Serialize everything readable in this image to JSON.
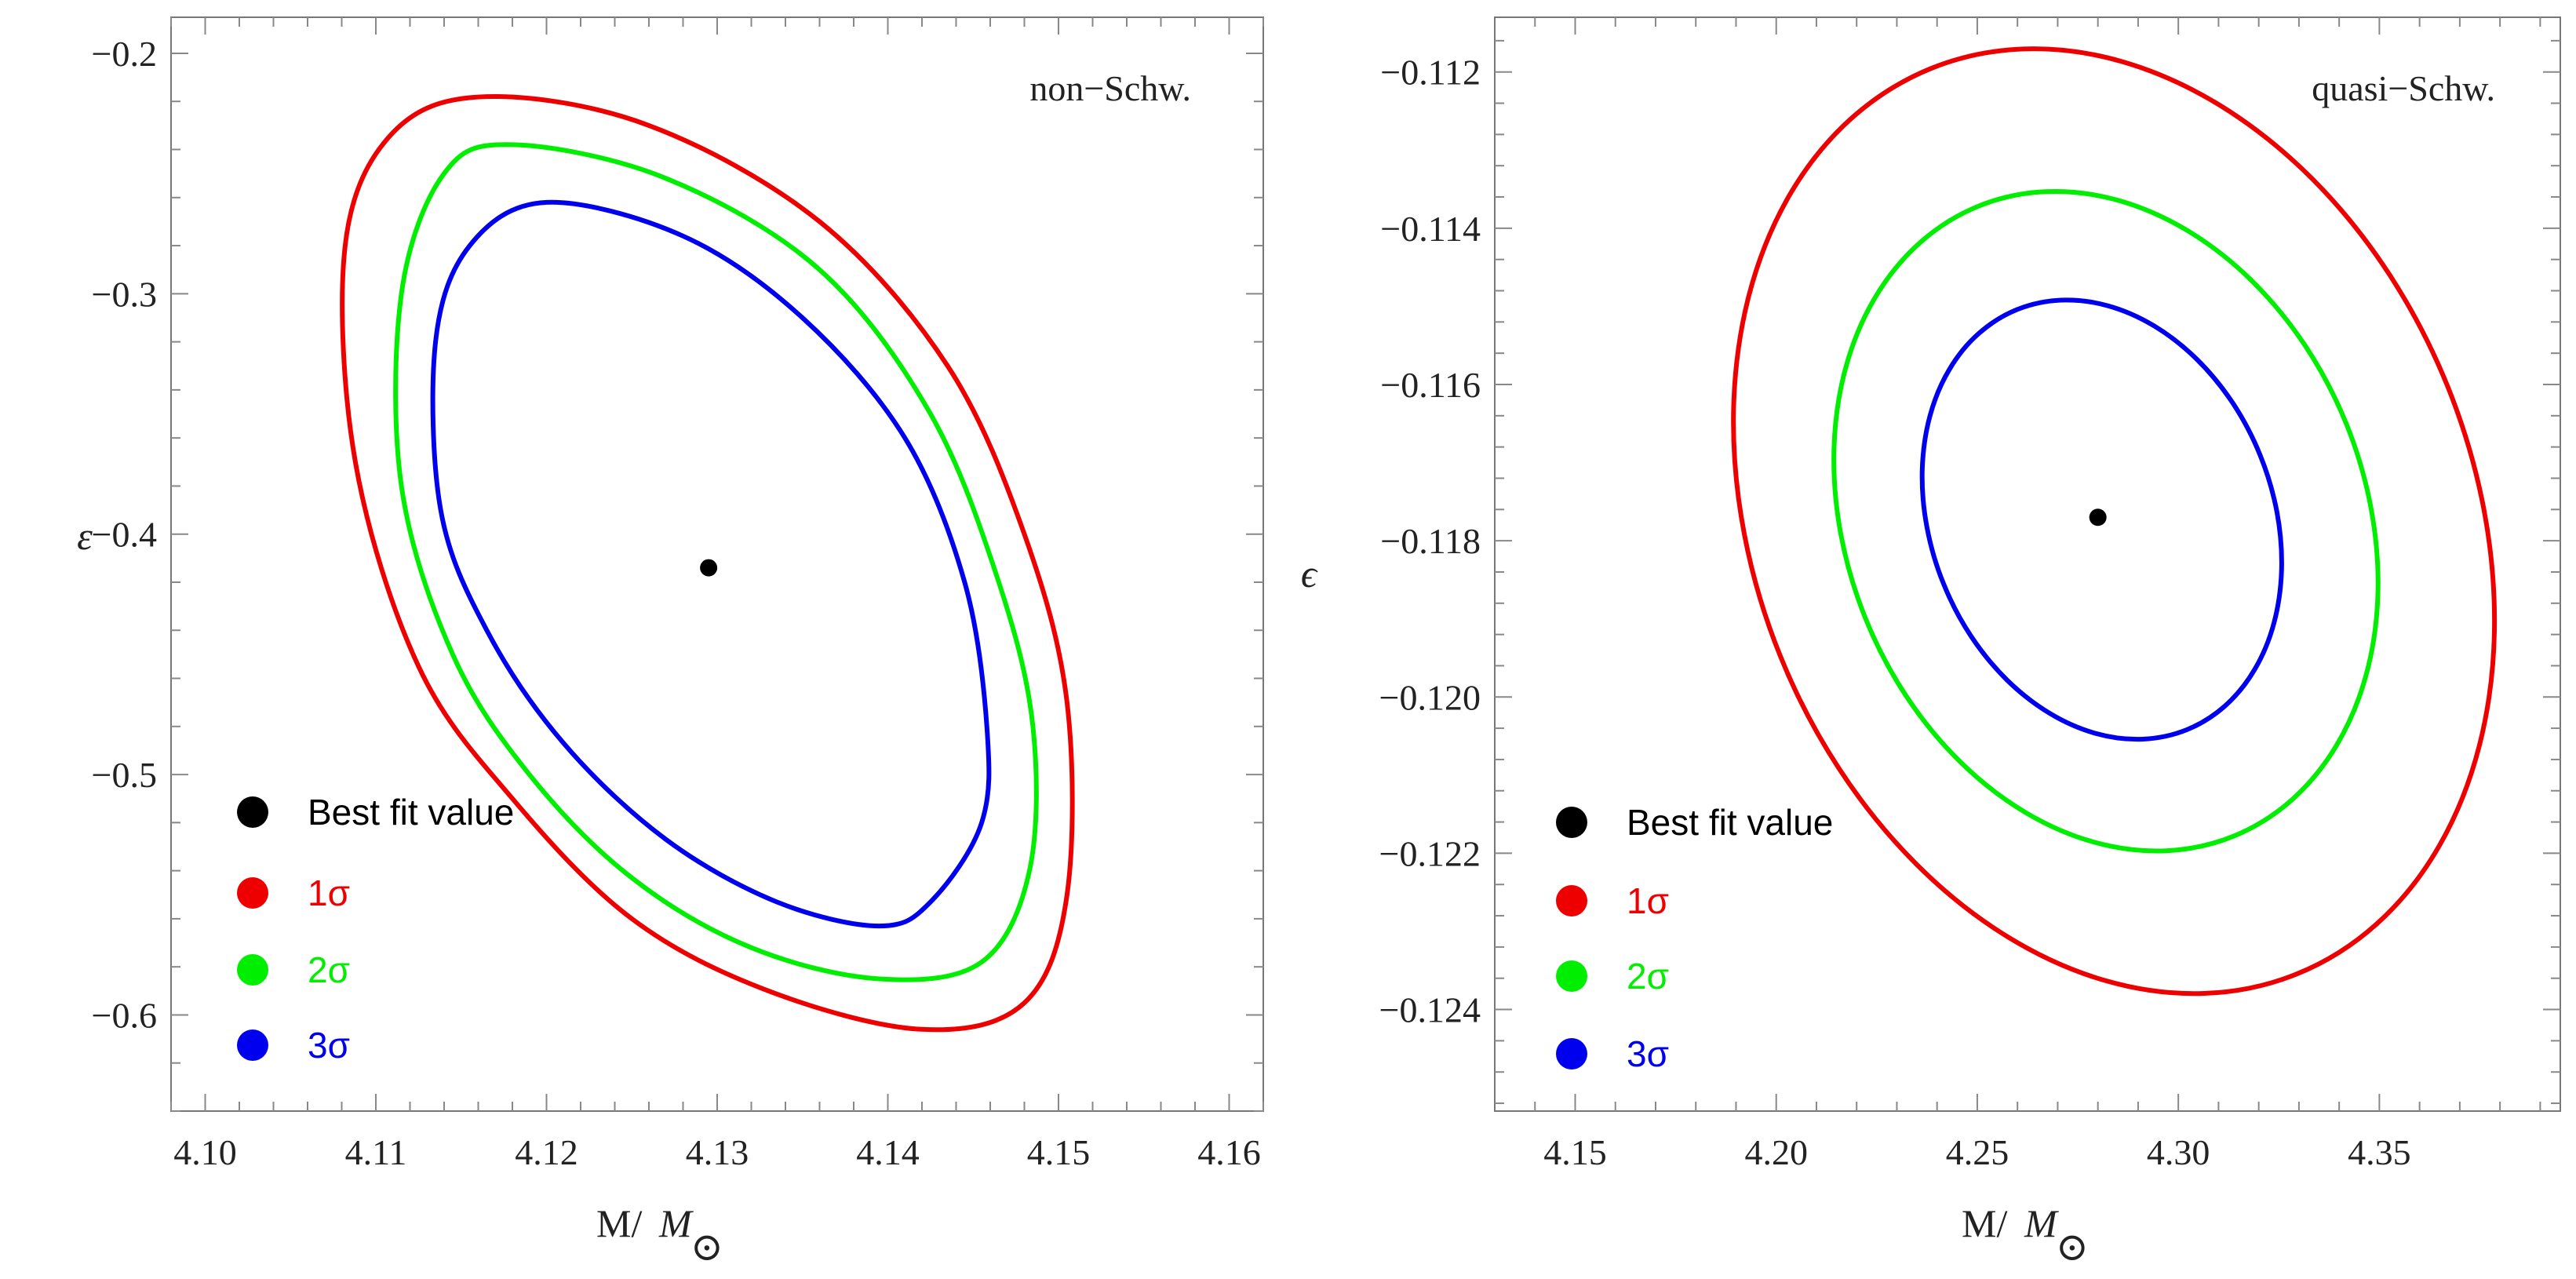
{
  "chart_data": [
    {
      "type": "contour",
      "panel_label": "non−Schw.",
      "xlabel_main": "M/",
      "xlabel_sym": "M",
      "xlabel_sub": "⊙",
      "ylabel": "ε",
      "xlim": [
        4.098,
        4.162
      ],
      "ylim": [
        -0.64,
        -0.185
      ],
      "xticks": [
        4.1,
        4.11,
        4.12,
        4.13,
        4.14,
        4.15,
        4.16
      ],
      "xtick_labels": [
        "4.10",
        "4.11",
        "4.12",
        "4.13",
        "4.14",
        "4.15",
        "4.16"
      ],
      "yticks": [
        -0.2,
        -0.3,
        -0.4,
        -0.5,
        -0.6
      ],
      "ytick_labels": [
        "−0.2",
        "−0.3",
        "−0.4",
        "−0.5",
        "−0.6"
      ],
      "best_fit": {
        "x": 4.1295,
        "y": -0.414
      },
      "contours": [
        {
          "name": "3σ",
          "color": "#0000ee",
          "points": [
            [
              4.12,
              -0.262
            ],
            [
              4.128,
              -0.276
            ],
            [
              4.135,
              -0.31
            ],
            [
              4.141,
              -0.36
            ],
            [
              4.1445,
              -0.42
            ],
            [
              4.1458,
              -0.48
            ],
            [
              4.1455,
              -0.52
            ],
            [
              4.1425,
              -0.553
            ],
            [
              4.1395,
              -0.563
            ],
            [
              4.1335,
              -0.553
            ],
            [
              4.127,
              -0.527
            ],
            [
              4.121,
              -0.487
            ],
            [
              4.1165,
              -0.44
            ],
            [
              4.1138,
              -0.39
            ],
            [
              4.1135,
              -0.32
            ],
            [
              4.1155,
              -0.28
            ]
          ]
        },
        {
          "name": "2σ",
          "color": "#00ee00",
          "points": [
            [
              4.118,
              -0.238
            ],
            [
              4.127,
              -0.252
            ],
            [
              4.136,
              -0.29
            ],
            [
              4.1425,
              -0.35
            ],
            [
              4.1465,
              -0.42
            ],
            [
              4.1485,
              -0.48
            ],
            [
              4.1483,
              -0.54
            ],
            [
              4.1455,
              -0.578
            ],
            [
              4.1395,
              -0.585
            ],
            [
              4.132,
              -0.572
            ],
            [
              4.125,
              -0.543
            ],
            [
              4.119,
              -0.5
            ],
            [
              4.1145,
              -0.45
            ],
            [
              4.1115,
              -0.38
            ],
            [
              4.1115,
              -0.3
            ],
            [
              4.114,
              -0.25
            ]
          ]
        },
        {
          "name": "1σ",
          "color": "#ee0000",
          "points": [
            [
              4.1165,
              -0.218
            ],
            [
              4.126,
              -0.23
            ],
            [
              4.136,
              -0.27
            ],
            [
              4.1435,
              -0.33
            ],
            [
              4.148,
              -0.4
            ],
            [
              4.1505,
              -0.47
            ],
            [
              4.1505,
              -0.55
            ],
            [
              4.148,
              -0.595
            ],
            [
              4.142,
              -0.606
            ],
            [
              4.133,
              -0.59
            ],
            [
              4.125,
              -0.56
            ],
            [
              4.118,
              -0.51
            ],
            [
              4.1125,
              -0.455
            ],
            [
              4.1088,
              -0.37
            ],
            [
              4.1082,
              -0.28
            ],
            [
              4.111,
              -0.233
            ]
          ]
        }
      ],
      "legend": [
        {
          "label": "Best fit value",
          "color": "#000000"
        },
        {
          "label": "1σ",
          "color": "#ee0000"
        },
        {
          "label": "2σ",
          "color": "#00ee00"
        },
        {
          "label": "3σ",
          "color": "#0000ee"
        }
      ],
      "legend_position": "bottom-left"
    },
    {
      "type": "contour",
      "panel_label": "quasi−Schw.",
      "xlabel_main": "M/",
      "xlabel_sym": "M",
      "xlabel_sub": "⊙",
      "ylabel": "ϵ",
      "xlim": [
        4.13,
        4.395
      ],
      "ylim": [
        -0.1253,
        -0.1113
      ],
      "xticks": [
        4.15,
        4.2,
        4.25,
        4.3,
        4.35
      ],
      "xtick_labels": [
        "4.15",
        "4.20",
        "4.25",
        "4.30",
        "4.35"
      ],
      "yticks": [
        -0.112,
        -0.114,
        -0.116,
        -0.118,
        -0.12,
        -0.122,
        -0.124
      ],
      "ytick_labels": [
        "−0.112",
        "−0.114",
        "−0.116",
        "−0.118",
        "−0.120",
        "−0.122",
        "−0.124"
      ],
      "best_fit": {
        "x": 4.28,
        "y": -0.1177
      },
      "contours": [
        {
          "name": "3σ",
          "color": "#0000ee",
          "center": [
            4.281,
            -0.11773
          ],
          "rx": 0.0425,
          "ry": 0.0029,
          "tilt_deg": -22
        },
        {
          "name": "2σ",
          "color": "#00ee00",
          "center": [
            4.282,
            -0.11775
          ],
          "rx": 0.0645,
          "ry": 0.00435,
          "tilt_deg": -22
        },
        {
          "name": "1σ",
          "color": "#ee0000",
          "center": [
            4.284,
            -0.11775
          ],
          "rx": 0.0895,
          "ry": 0.00625,
          "tilt_deg": -22
        }
      ],
      "legend": [
        {
          "label": "Best fit value",
          "color": "#000000"
        },
        {
          "label": "1σ",
          "color": "#ee0000"
        },
        {
          "label": "2σ",
          "color": "#00ee00"
        },
        {
          "label": "3σ",
          "color": "#0000ee"
        }
      ],
      "legend_position": "bottom-left"
    }
  ]
}
